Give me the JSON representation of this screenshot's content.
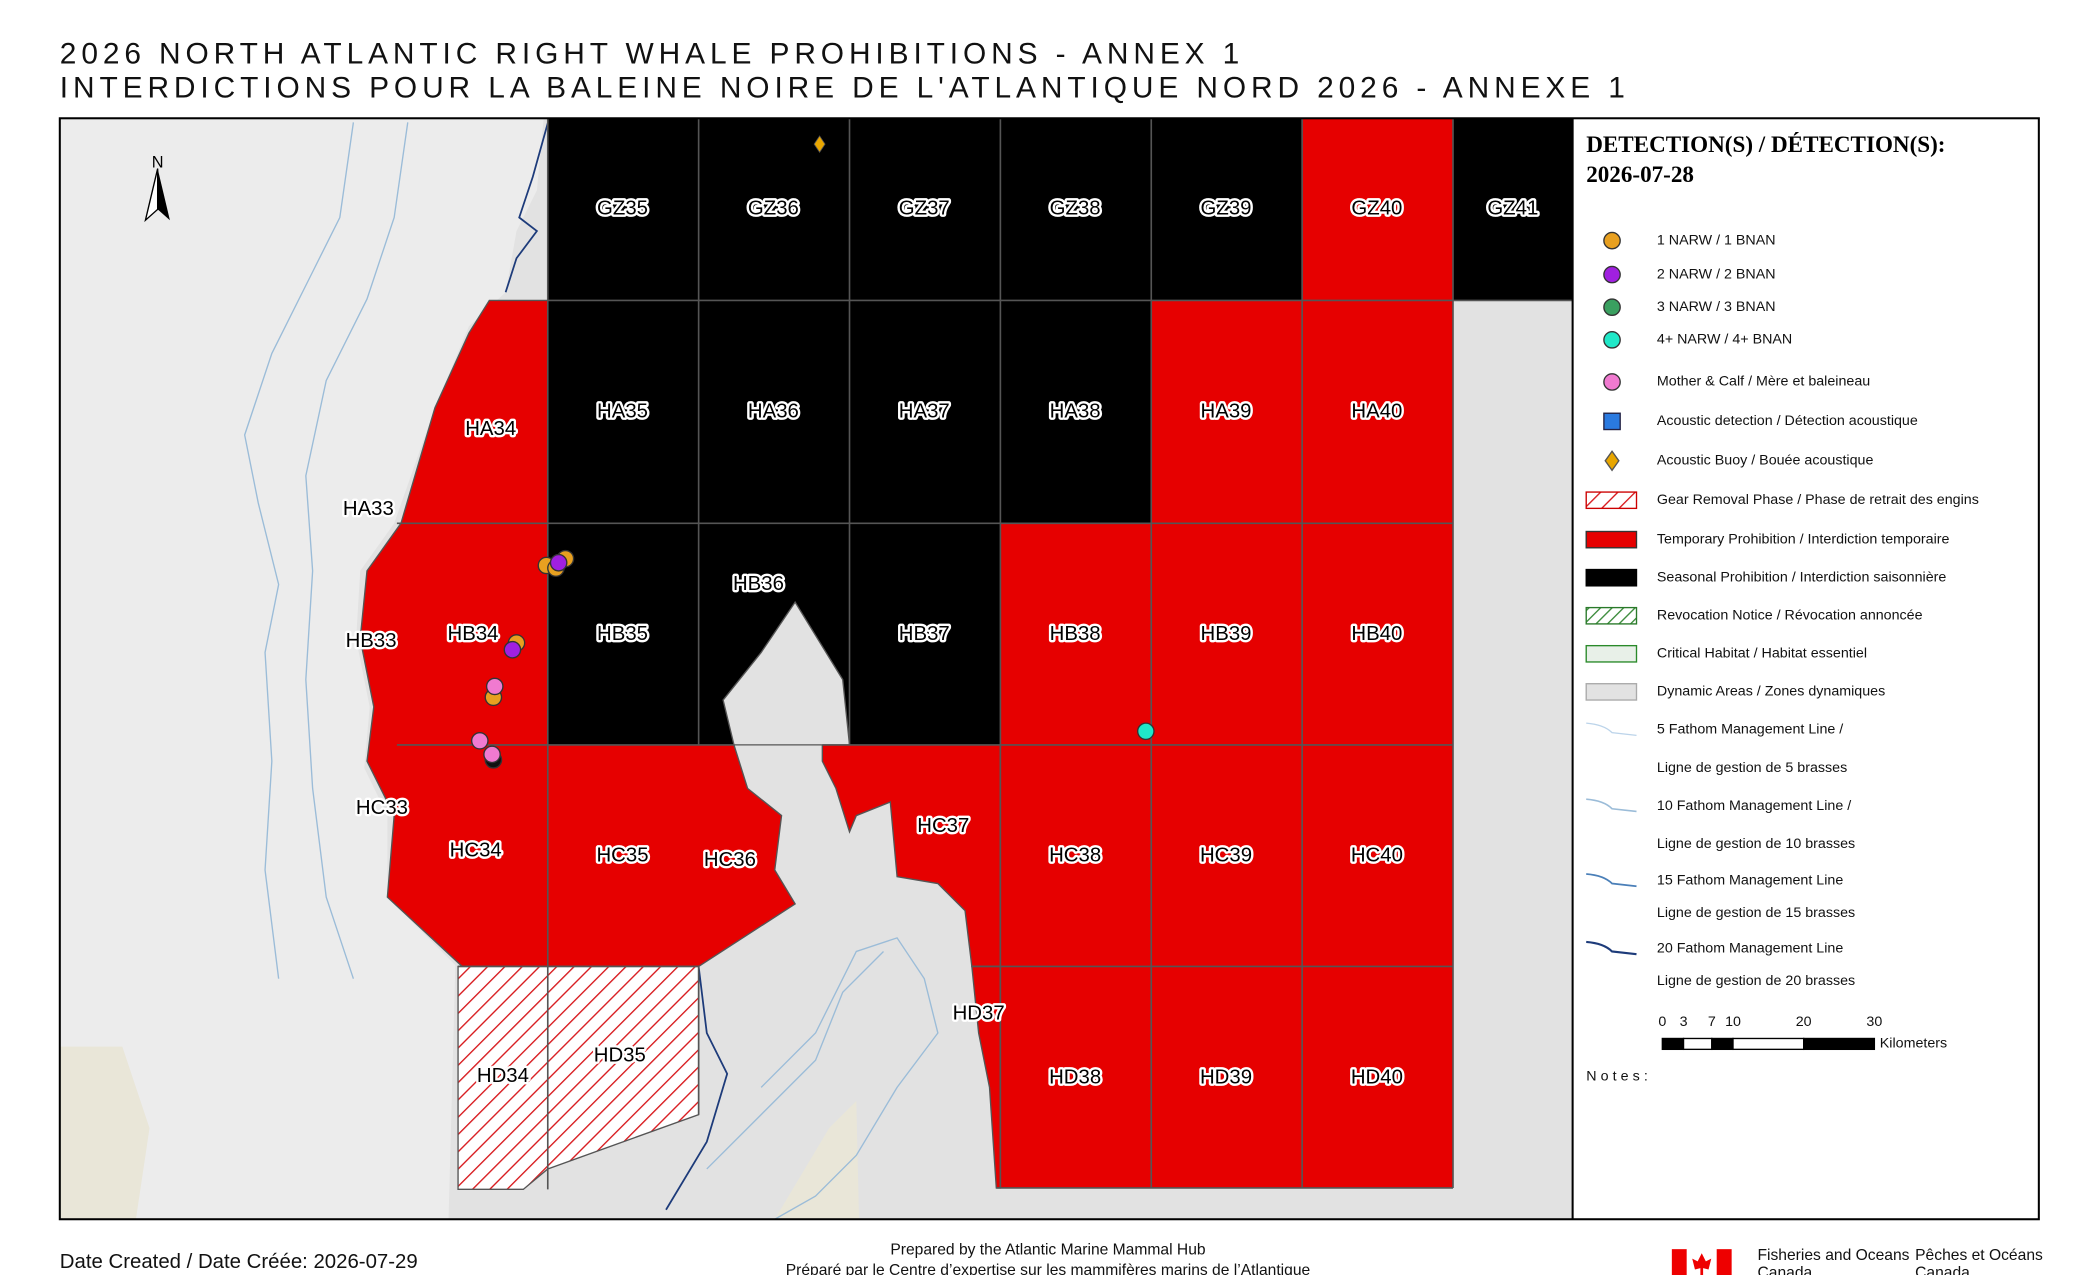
{
  "header": {
    "title": "2026 NORTH ATLANTIC RIGHT WHALE PROHIBITIONS - ANNEX 1",
    "subtitle": "INTERDICTIONS POUR LA BALEINE NOIRE DE L'ATLANTIQUE NORD 2026 - ANNEXE 1"
  },
  "map": {
    "north": "N",
    "cells": [
      "GZ35",
      "GZ36",
      "GZ37",
      "GZ38",
      "GZ39",
      "GZ40",
      "GZ41",
      "HA33",
      "HA34",
      "HA35",
      "HA36",
      "HA37",
      "HA38",
      "HA39",
      "HA40",
      "HB33",
      "HB34",
      "HB35",
      "HB36",
      "HB37",
      "HB38",
      "HB39",
      "HB40",
      "HC33",
      "HC34",
      "HC35",
      "HC36",
      "HC37",
      "HC38",
      "HC39",
      "HC40",
      "HD34",
      "HD35",
      "HD37",
      "HD38",
      "HD39",
      "HD40"
    ]
  },
  "legend": {
    "title": "DETECTION(S) / DÉTECTION(S):",
    "date": "2026-07-28",
    "items": [
      "1 NARW / 1 BNAN",
      "2 NARW / 2 BNAN",
      "3 NARW / 3 BNAN",
      "4+ NARW / 4+ BNAN",
      "Mother & Calf / Mère et baleineau",
      "Acoustic detection / Détection acoustique",
      "Acoustic Buoy / Bouée acoustique",
      "Gear Removal Phase / Phase de retrait des engins",
      "Temporary Prohibition / Interdiction temporaire",
      "Seasonal Prohibition / Interdiction saisonnière",
      "Revocation Notice / Révocation annoncée",
      "Critical Habitat / Habitat essentiel",
      "Dynamic Areas / Zones dynamiques",
      "5 Fathom Management Line /",
      "Ligne de gestion de 5 brasses",
      "10 Fathom Management Line /",
      "Ligne de gestion de 10 brasses",
      "15 Fathom Management Line",
      "Ligne de gestion de 15 brasses",
      "20 Fathom Management Line",
      "Ligne de gestion de 20 brasses"
    ],
    "scale": {
      "ticks": [
        0,
        3,
        7,
        10,
        20,
        30
      ],
      "unit": "Kilometers"
    },
    "notes": "Notes:"
  },
  "footer": {
    "date": "Date Created / Date Créée: 2026-07-29",
    "prepared": "Prepared by the Atlantic Marine Mammal Hub",
    "prepared_fr": "Préparé par le Centre d’expertise sur les mammifères marins de l’Atlantique",
    "dfo_en": [
      "Fisheries and Oceans",
      "Canada"
    ],
    "dfo_fr": [
      "Pêches et Océans",
      "Canada"
    ]
  }
}
